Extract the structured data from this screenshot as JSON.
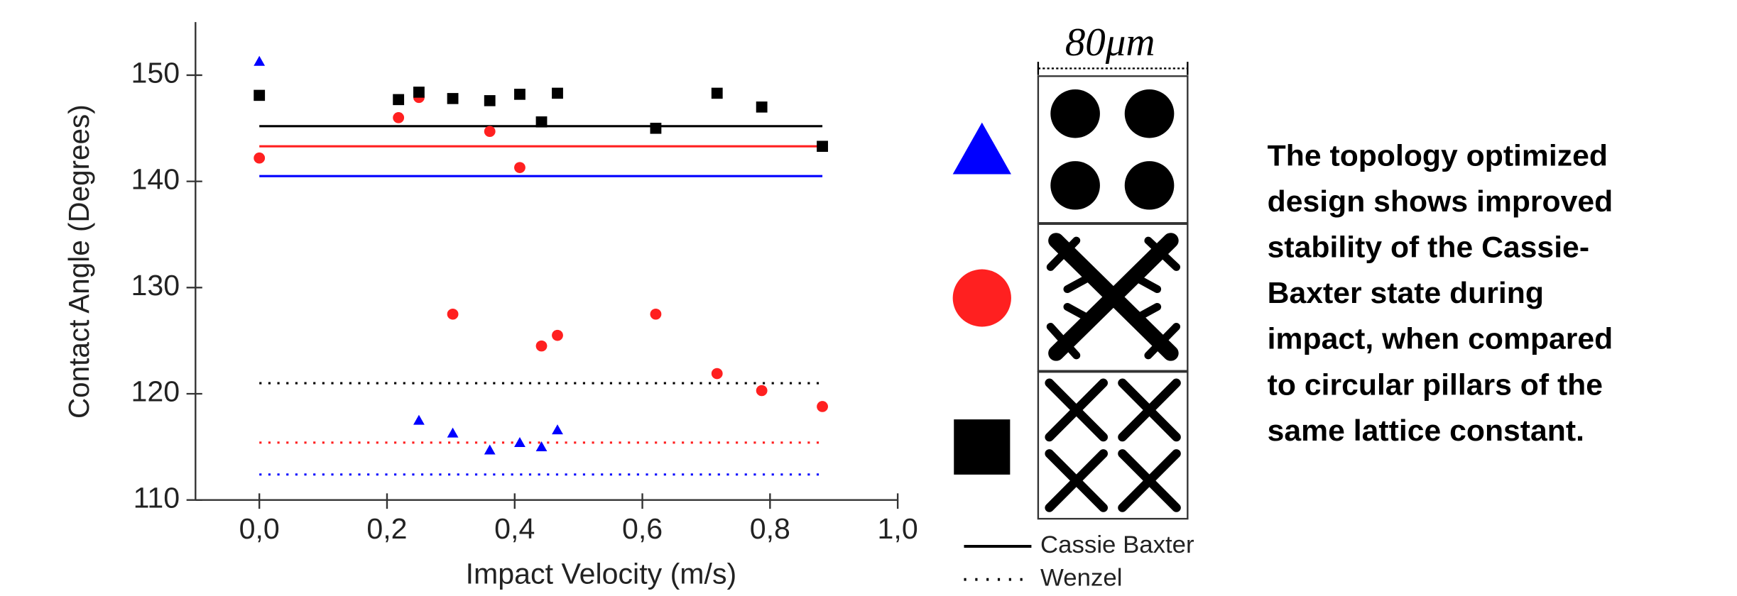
{
  "chart_data": {
    "type": "scatter",
    "xlabel": "Impact Velocity (m/s)",
    "ylabel": "Contact Angle (Degrees)",
    "xlim": [
      -0.1,
      1.0
    ],
    "ylim": [
      110,
      155
    ],
    "xticks": [
      {
        "value": 0,
        "label": "0,0"
      },
      {
        "value": 0.2,
        "label": "0,2"
      },
      {
        "value": 0.4,
        "label": "0,4"
      },
      {
        "value": 0.6,
        "label": "0,6"
      },
      {
        "value": 0.8,
        "label": "0,8"
      },
      {
        "value": 1.0,
        "label": "1,0"
      }
    ],
    "yticks": [
      110,
      120,
      130,
      140,
      150
    ],
    "series": [
      {
        "color": "#0000ff",
        "marker": "triangle",
        "x": [
          0,
          0.218,
          0.25,
          0.303,
          0.361,
          0.408,
          0.442,
          0.467
        ],
        "values": [
          151.3,
          147.7,
          117.5,
          116.3,
          114.7,
          115.4,
          115.0,
          116.6
        ]
      },
      {
        "color": "#ff2020",
        "marker": "circle",
        "x": [
          0,
          0.218,
          0.25,
          0.303,
          0.361,
          0.408,
          0.442,
          0.467,
          0.621,
          0.717,
          0.787,
          0.882
        ],
        "values": [
          142.2,
          146.0,
          147.9,
          127.5,
          144.7,
          141.3,
          124.5,
          125.5,
          127.5,
          121.9,
          120.3,
          118.8
        ]
      },
      {
        "color": "#000000",
        "marker": "square",
        "x": [
          0,
          0.218,
          0.25,
          0.303,
          0.361,
          0.408,
          0.442,
          0.467,
          0.621,
          0.717,
          0.787,
          0.882
        ],
        "values": [
          148.1,
          147.7,
          148.4,
          147.8,
          147.6,
          148.2,
          145.6,
          148.3,
          145.0,
          148.3,
          147.0,
          143.3
        ]
      }
    ],
    "line_x": [
      0,
      0.882
    ],
    "reference_lines": [
      {
        "name": "Cassie Baxter",
        "style": "solid",
        "values": [
          140.5,
          143.3,
          145.2
        ]
      },
      {
        "name": "Wenzel",
        "style": "dotted",
        "values": [
          112.4,
          115.4,
          121.0
        ]
      }
    ],
    "scale_label": "80μm",
    "caption_lines": [
      "The topology optimized",
      "design shows improved",
      "stability of the Cassie-",
      "Baxter state during",
      "impact, when compared",
      "to circular pillars of the",
      "same lattice constant."
    ]
  }
}
